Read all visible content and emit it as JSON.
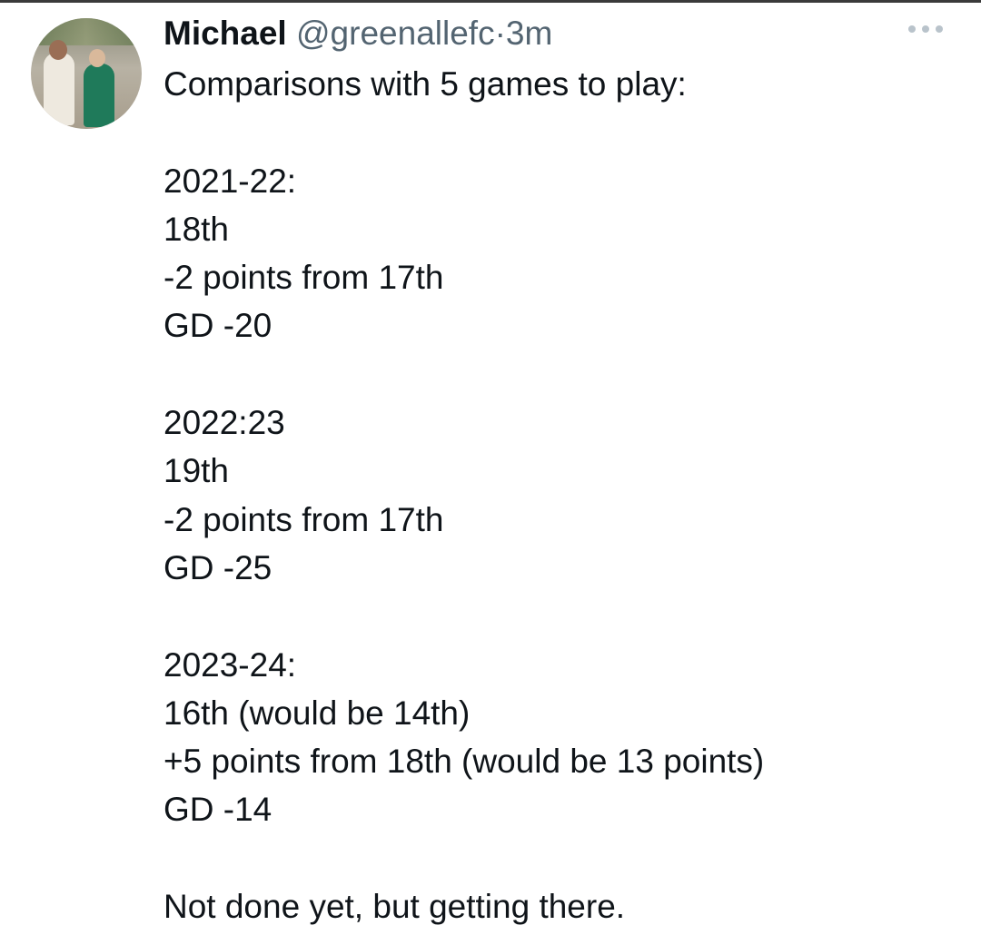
{
  "tweet": {
    "author_name": "Michael",
    "handle": "@greenallefc",
    "separator": "·",
    "time": "3m",
    "more_icon": "ellipsis-icon",
    "text": "Comparisons with 5 games to play:\n\n2021-22:\n18th\n-2 points from 17th\nGD -20\n\n2022:23\n19th\n-2 points from 17th\nGD -25\n\n2023-24:\n16th (would be 14th)\n+5 points from 18th (would be 13 points)\nGD -14\n\nNot done yet, but getting there."
  }
}
